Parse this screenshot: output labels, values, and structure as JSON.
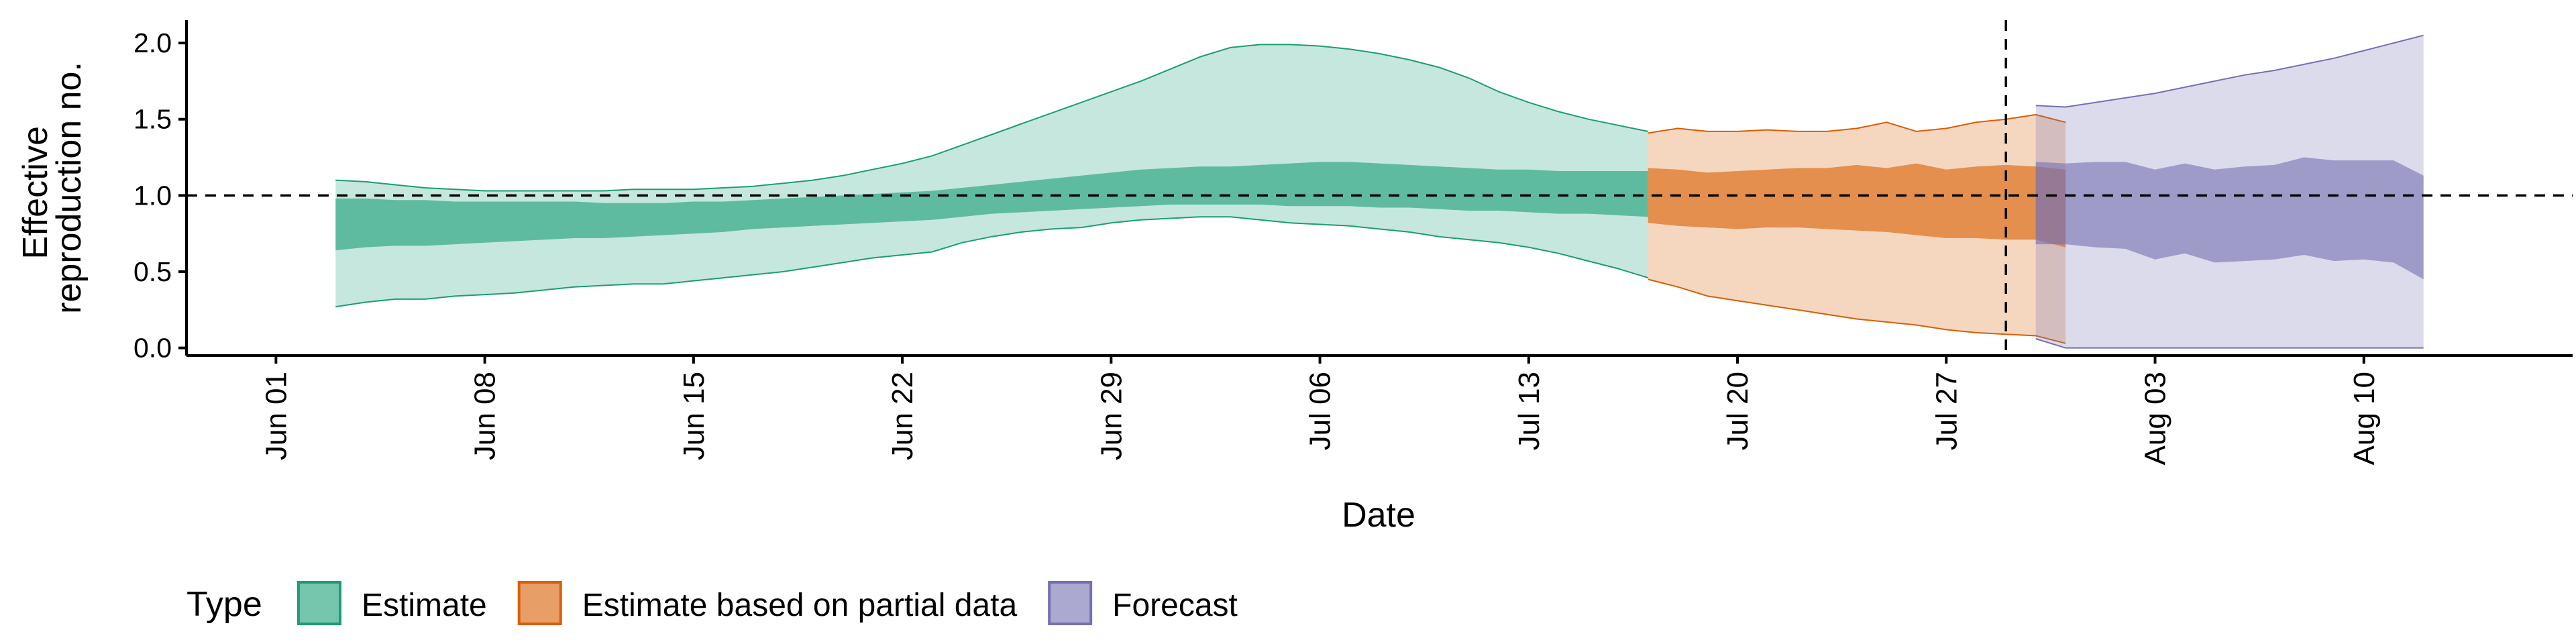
{
  "chart_data": {
    "type": "area",
    "xlabel": "Date",
    "ylabel_lines": [
      "Effective",
      "reproduction no."
    ],
    "ylim": [
      -0.05,
      2.15
    ],
    "y_ticks": [
      {
        "value": 0.0,
        "label": "0.0"
      },
      {
        "value": 0.5,
        "label": "0.5"
      },
      {
        "value": 1.0,
        "label": "1.0"
      },
      {
        "value": 1.5,
        "label": "1.5"
      },
      {
        "value": 2.0,
        "label": "2.0"
      }
    ],
    "xlim": [
      "2020-05-29",
      "2020-08-17"
    ],
    "x_ticks": [
      {
        "date": "2020-06-01",
        "label": "Jun 01"
      },
      {
        "date": "2020-06-08",
        "label": "Jun 08"
      },
      {
        "date": "2020-06-15",
        "label": "Jun 15"
      },
      {
        "date": "2020-06-22",
        "label": "Jun 22"
      },
      {
        "date": "2020-06-29",
        "label": "Jun 29"
      },
      {
        "date": "2020-07-06",
        "label": "Jul 06"
      },
      {
        "date": "2020-07-13",
        "label": "Jul 13"
      },
      {
        "date": "2020-07-20",
        "label": "Jul 20"
      },
      {
        "date": "2020-07-27",
        "label": "Jul 27"
      },
      {
        "date": "2020-08-03",
        "label": "Aug 03"
      },
      {
        "date": "2020-08-10",
        "label": "Aug 10"
      }
    ],
    "reference_lines": {
      "horizontal_y": 1.0,
      "vertical_date": "2020-07-29"
    },
    "legend": {
      "title": "Type",
      "position": "bottom-left"
    },
    "series": [
      {
        "name": "Estimate",
        "fill_color": "#1b9e77",
        "x_start": "2020-06-03",
        "outer_lower": [
          0.27,
          0.3,
          0.32,
          0.32,
          0.34,
          0.35,
          0.36,
          0.38,
          0.4,
          0.41,
          0.42,
          0.42,
          0.44,
          0.46,
          0.48,
          0.5,
          0.53,
          0.56,
          0.59,
          0.61,
          0.63,
          0.69,
          0.73,
          0.76,
          0.78,
          0.79,
          0.82,
          0.84,
          0.85,
          0.86,
          0.86,
          0.84,
          0.82,
          0.81,
          0.8,
          0.78,
          0.76,
          0.73,
          0.71,
          0.69,
          0.66,
          0.62,
          0.57,
          0.52,
          0.46
        ],
        "inner_lower": [
          0.64,
          0.66,
          0.67,
          0.67,
          0.68,
          0.69,
          0.7,
          0.71,
          0.72,
          0.72,
          0.73,
          0.74,
          0.75,
          0.76,
          0.78,
          0.79,
          0.8,
          0.81,
          0.82,
          0.83,
          0.84,
          0.86,
          0.88,
          0.89,
          0.9,
          0.91,
          0.92,
          0.93,
          0.94,
          0.94,
          0.94,
          0.94,
          0.93,
          0.93,
          0.93,
          0.92,
          0.92,
          0.91,
          0.9,
          0.9,
          0.89,
          0.88,
          0.88,
          0.87,
          0.86
        ],
        "inner_upper": [
          0.98,
          0.98,
          0.97,
          0.97,
          0.96,
          0.96,
          0.96,
          0.96,
          0.96,
          0.95,
          0.95,
          0.95,
          0.96,
          0.96,
          0.97,
          0.98,
          0.99,
          1.0,
          1.01,
          1.02,
          1.03,
          1.05,
          1.07,
          1.09,
          1.11,
          1.13,
          1.15,
          1.17,
          1.18,
          1.19,
          1.19,
          1.2,
          1.21,
          1.22,
          1.22,
          1.21,
          1.2,
          1.19,
          1.18,
          1.17,
          1.17,
          1.16,
          1.16,
          1.16,
          1.16
        ],
        "outer_upper": [
          1.1,
          1.09,
          1.07,
          1.05,
          1.04,
          1.03,
          1.03,
          1.03,
          1.03,
          1.03,
          1.04,
          1.04,
          1.04,
          1.05,
          1.06,
          1.08,
          1.1,
          1.13,
          1.17,
          1.21,
          1.26,
          1.33,
          1.4,
          1.47,
          1.54,
          1.61,
          1.68,
          1.75,
          1.83,
          1.91,
          1.97,
          1.99,
          1.99,
          1.98,
          1.96,
          1.93,
          1.89,
          1.84,
          1.77,
          1.68,
          1.61,
          1.55,
          1.5,
          1.46,
          1.42
        ]
      },
      {
        "name": "Estimate based on partial data",
        "fill_color": "#d95f02",
        "x_start": "2020-07-17",
        "outer_lower": [
          0.45,
          0.4,
          0.34,
          0.31,
          0.28,
          0.25,
          0.22,
          0.19,
          0.17,
          0.15,
          0.12,
          0.1,
          0.09,
          0.08,
          0.03
        ],
        "inner_lower": [
          0.82,
          0.8,
          0.79,
          0.78,
          0.79,
          0.79,
          0.78,
          0.77,
          0.76,
          0.74,
          0.72,
          0.72,
          0.71,
          0.71,
          0.66
        ],
        "inner_upper": [
          1.18,
          1.17,
          1.15,
          1.16,
          1.17,
          1.18,
          1.18,
          1.2,
          1.18,
          1.21,
          1.17,
          1.19,
          1.2,
          1.19,
          1.17
        ],
        "outer_upper": [
          1.41,
          1.44,
          1.42,
          1.42,
          1.43,
          1.42,
          1.42,
          1.44,
          1.48,
          1.42,
          1.44,
          1.48,
          1.5,
          1.53,
          1.48
        ]
      },
      {
        "name": "Forecast",
        "fill_color": "#7570b3",
        "x_start": "2020-07-30",
        "outer_lower": [
          0.06,
          0.0,
          0.0,
          0.0,
          0.0,
          0.0,
          0.0,
          0.0,
          0.0,
          0.0,
          0.0,
          0.0,
          0.0,
          0.0
        ],
        "inner_lower": [
          0.68,
          0.68,
          0.66,
          0.65,
          0.58,
          0.62,
          0.56,
          0.57,
          0.58,
          0.61,
          0.57,
          0.58,
          0.56,
          0.45
        ],
        "inner_upper": [
          1.22,
          1.21,
          1.22,
          1.22,
          1.17,
          1.21,
          1.17,
          1.19,
          1.2,
          1.25,
          1.23,
          1.23,
          1.23,
          1.13
        ],
        "outer_upper": [
          1.59,
          1.58,
          1.61,
          1.64,
          1.67,
          1.71,
          1.75,
          1.79,
          1.82,
          1.86,
          1.9,
          1.95,
          2.0,
          2.05
        ]
      }
    ]
  }
}
